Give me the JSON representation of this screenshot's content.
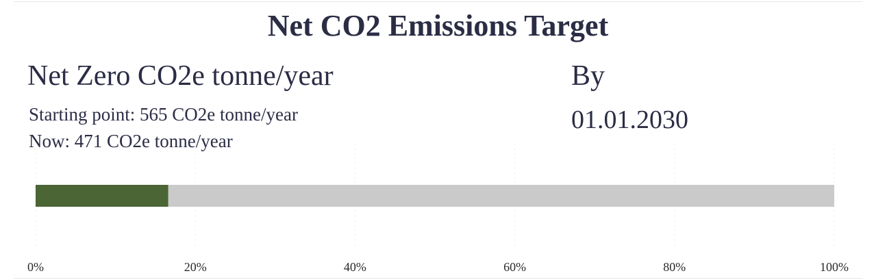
{
  "header": {
    "title": "Net CO2 Emissions Target"
  },
  "kpi": {
    "target_label": "Net Zero CO2e tonne/year",
    "starting_point_label": "Starting point: 565 CO2e tonne/year",
    "now_label": "Now: 471 CO2e tonne/year",
    "by_label": "By",
    "target_date": "01.01.2030"
  },
  "chart_data": {
    "type": "bar",
    "orientation": "horizontal",
    "progress_percent": 16.6,
    "xlim": [
      0,
      100
    ],
    "x_ticks": [
      0,
      20,
      40,
      60,
      80,
      100
    ],
    "x_tick_labels": [
      "0%",
      "20%",
      "40%",
      "60%",
      "80%",
      "100%"
    ],
    "grid": true,
    "colors": {
      "progress": "#4b6535",
      "track": "#cacaca",
      "grid": "#d7d7d7",
      "tick_text": "#2a2a2a"
    }
  }
}
